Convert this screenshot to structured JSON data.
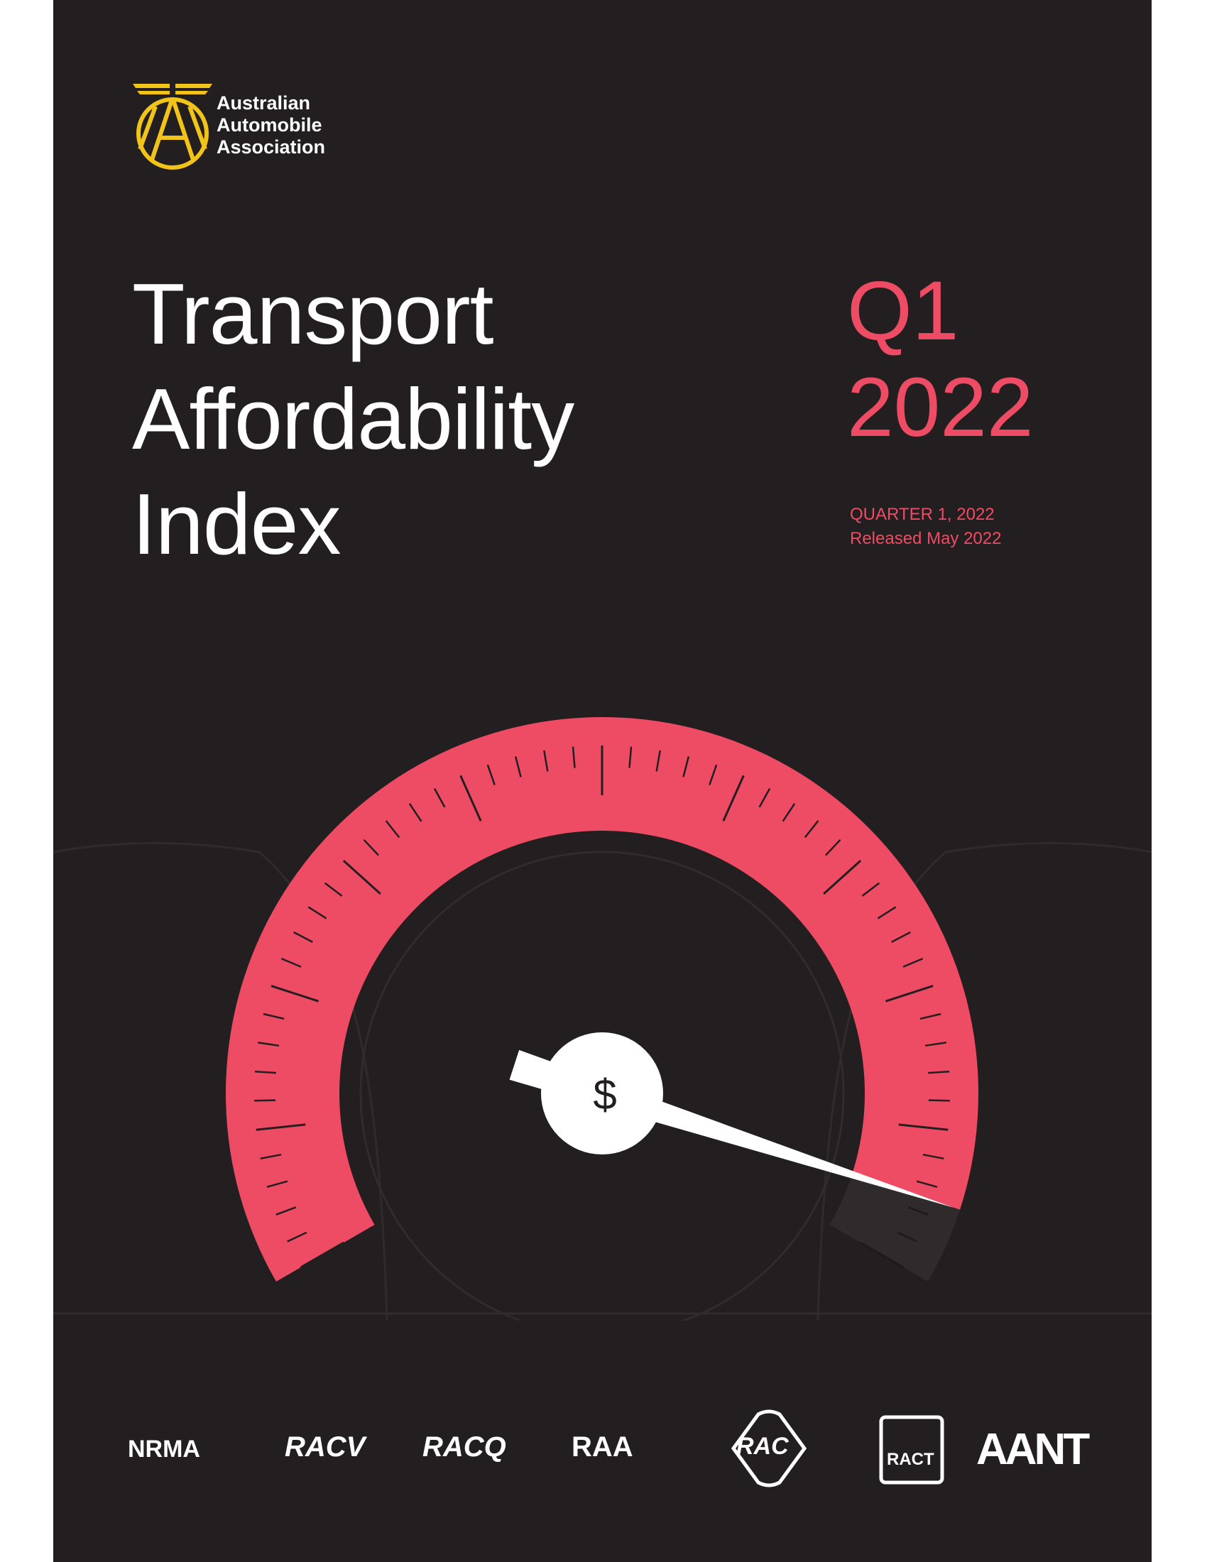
{
  "organisation": {
    "name_lines": [
      "Australian",
      "Automobile",
      "Association"
    ],
    "logo_letters": "AAA"
  },
  "title_lines": [
    "Transport",
    "Affordability",
    "Index"
  ],
  "quarter": {
    "short_lines": [
      "Q1",
      "2022"
    ],
    "full": "QUARTER 1, 2022",
    "released": "Released May 2022"
  },
  "gauge": {
    "symbol": "$",
    "needle_level": 0.95,
    "accent_color": "#ee4c64",
    "background_color": "#231f20"
  },
  "partners": [
    "NRMA",
    "RACV",
    "RACQ",
    "RAA",
    "RAC",
    "RACT",
    "AANT"
  ]
}
